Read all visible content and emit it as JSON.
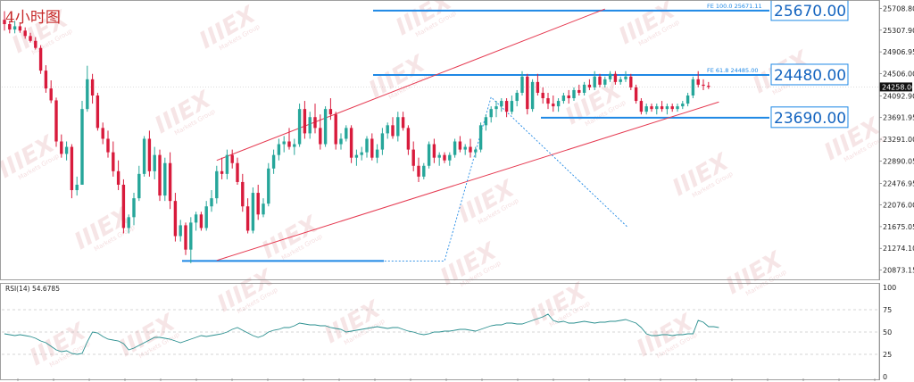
{
  "chart_data": {
    "type": "candlestick",
    "title": "4小时图",
    "price_axis": {
      "ylim": [
        20700,
        25800
      ],
      "ticks": [
        "25708.80",
        "25307.90",
        "24906.95",
        "24506.00",
        "24092.90",
        "23691.95",
        "23291.00",
        "22890.05",
        "22476.95",
        "22076.00",
        "21675.05",
        "21274.10",
        "20873.15"
      ],
      "current_price": "24258.00"
    },
    "candles": [
      {
        "o": 25500,
        "h": 25660,
        "l": 25300,
        "c": 25420
      },
      {
        "o": 25420,
        "h": 25480,
        "l": 25250,
        "c": 25320
      },
      {
        "o": 25320,
        "h": 25480,
        "l": 25250,
        "c": 25380
      },
      {
        "o": 25380,
        "h": 25450,
        "l": 25260,
        "c": 25300
      },
      {
        "o": 25300,
        "h": 25360,
        "l": 25150,
        "c": 25200
      },
      {
        "o": 25200,
        "h": 25260,
        "l": 25080,
        "c": 25110
      },
      {
        "o": 25110,
        "h": 25180,
        "l": 24950,
        "c": 24980
      },
      {
        "o": 24980,
        "h": 25030,
        "l": 24500,
        "c": 24560
      },
      {
        "o": 24560,
        "h": 24660,
        "l": 24150,
        "c": 24230
      },
      {
        "o": 24230,
        "h": 24380,
        "l": 23960,
        "c": 24010
      },
      {
        "o": 24010,
        "h": 24060,
        "l": 23150,
        "c": 23250
      },
      {
        "o": 23250,
        "h": 23380,
        "l": 22950,
        "c": 23020
      },
      {
        "o": 23020,
        "h": 23250,
        "l": 22900,
        "c": 23150
      },
      {
        "o": 23150,
        "h": 23200,
        "l": 22200,
        "c": 22350
      },
      {
        "o": 22350,
        "h": 22600,
        "l": 22250,
        "c": 22450
      },
      {
        "o": 22450,
        "h": 24000,
        "l": 22450,
        "c": 23850
      },
      {
        "o": 23850,
        "h": 24650,
        "l": 23800,
        "c": 24400
      },
      {
        "o": 24400,
        "h": 24500,
        "l": 23950,
        "c": 24100
      },
      {
        "o": 24100,
        "h": 24150,
        "l": 23450,
        "c": 23500
      },
      {
        "o": 23500,
        "h": 23600,
        "l": 23200,
        "c": 23300
      },
      {
        "o": 23300,
        "h": 23450,
        "l": 22950,
        "c": 23050
      },
      {
        "o": 23050,
        "h": 23250,
        "l": 22600,
        "c": 22700
      },
      {
        "o": 22700,
        "h": 22900,
        "l": 22350,
        "c": 22450
      },
      {
        "o": 22450,
        "h": 22550,
        "l": 21550,
        "c": 21650
      },
      {
        "o": 21650,
        "h": 21900,
        "l": 21550,
        "c": 21850
      },
      {
        "o": 21850,
        "h": 22300,
        "l": 21700,
        "c": 22200
      },
      {
        "o": 22200,
        "h": 22800,
        "l": 22150,
        "c": 22650
      },
      {
        "o": 22650,
        "h": 23350,
        "l": 22600,
        "c": 23300
      },
      {
        "o": 23300,
        "h": 23450,
        "l": 22600,
        "c": 22700
      },
      {
        "o": 22700,
        "h": 23150,
        "l": 22550,
        "c": 23000
      },
      {
        "o": 23000,
        "h": 23100,
        "l": 22150,
        "c": 22250
      },
      {
        "o": 22250,
        "h": 22950,
        "l": 22150,
        "c": 22850
      },
      {
        "o": 22850,
        "h": 23050,
        "l": 22000,
        "c": 22150
      },
      {
        "o": 22150,
        "h": 22300,
        "l": 21400,
        "c": 21500
      },
      {
        "o": 21500,
        "h": 21800,
        "l": 21400,
        "c": 21700
      },
      {
        "o": 21700,
        "h": 21750,
        "l": 21150,
        "c": 21250
      },
      {
        "o": 21250,
        "h": 21850,
        "l": 21000,
        "c": 21750
      },
      {
        "o": 21750,
        "h": 21950,
        "l": 21600,
        "c": 21900
      },
      {
        "o": 21900,
        "h": 21950,
        "l": 21600,
        "c": 21650
      },
      {
        "o": 21650,
        "h": 22150,
        "l": 21600,
        "c": 22050
      },
      {
        "o": 22050,
        "h": 22350,
        "l": 21950,
        "c": 22200
      },
      {
        "o": 22200,
        "h": 22800,
        "l": 22100,
        "c": 22700
      },
      {
        "o": 22700,
        "h": 22950,
        "l": 22550,
        "c": 22650
      },
      {
        "o": 22650,
        "h": 23100,
        "l": 22550,
        "c": 23000
      },
      {
        "o": 23000,
        "h": 23100,
        "l": 22750,
        "c": 22850
      },
      {
        "o": 22850,
        "h": 22950,
        "l": 22450,
        "c": 22500
      },
      {
        "o": 22500,
        "h": 22650,
        "l": 21950,
        "c": 22050
      },
      {
        "o": 22050,
        "h": 22200,
        "l": 21550,
        "c": 21600
      },
      {
        "o": 21600,
        "h": 22400,
        "l": 21550,
        "c": 22300
      },
      {
        "o": 22300,
        "h": 22450,
        "l": 21800,
        "c": 21900
      },
      {
        "o": 21900,
        "h": 22200,
        "l": 21850,
        "c": 22100
      },
      {
        "o": 22100,
        "h": 22850,
        "l": 22050,
        "c": 22750
      },
      {
        "o": 22750,
        "h": 23100,
        "l": 22650,
        "c": 23000
      },
      {
        "o": 23000,
        "h": 23300,
        "l": 22900,
        "c": 23200
      },
      {
        "o": 23200,
        "h": 23350,
        "l": 23050,
        "c": 23250
      },
      {
        "o": 23250,
        "h": 23500,
        "l": 23100,
        "c": 23150
      },
      {
        "o": 23150,
        "h": 23300,
        "l": 23000,
        "c": 23200
      },
      {
        "o": 23200,
        "h": 23950,
        "l": 23150,
        "c": 23850
      },
      {
        "o": 23850,
        "h": 24000,
        "l": 23300,
        "c": 23400
      },
      {
        "o": 23400,
        "h": 23800,
        "l": 23300,
        "c": 23700
      },
      {
        "o": 23700,
        "h": 23950,
        "l": 23400,
        "c": 23500
      },
      {
        "o": 23500,
        "h": 23750,
        "l": 23100,
        "c": 23200
      },
      {
        "o": 23200,
        "h": 23900,
        "l": 23150,
        "c": 23850
      },
      {
        "o": 23850,
        "h": 24050,
        "l": 23650,
        "c": 23750
      },
      {
        "o": 23750,
        "h": 23800,
        "l": 23100,
        "c": 23200
      },
      {
        "o": 23200,
        "h": 23400,
        "l": 23100,
        "c": 23300
      },
      {
        "o": 23300,
        "h": 23550,
        "l": 23250,
        "c": 23500
      },
      {
        "o": 23500,
        "h": 23550,
        "l": 22850,
        "c": 22950
      },
      {
        "o": 22950,
        "h": 23100,
        "l": 22800,
        "c": 23000
      },
      {
        "o": 23000,
        "h": 23150,
        "l": 22900,
        "c": 23050
      },
      {
        "o": 23050,
        "h": 23350,
        "l": 22950,
        "c": 23300
      },
      {
        "o": 23300,
        "h": 23400,
        "l": 22900,
        "c": 22950
      },
      {
        "o": 22950,
        "h": 23200,
        "l": 22850,
        "c": 23100
      },
      {
        "o": 23100,
        "h": 23500,
        "l": 23000,
        "c": 23400
      },
      {
        "o": 23400,
        "h": 23600,
        "l": 23300,
        "c": 23550
      },
      {
        "o": 23550,
        "h": 23700,
        "l": 23300,
        "c": 23350
      },
      {
        "o": 23350,
        "h": 23800,
        "l": 23250,
        "c": 23700
      },
      {
        "o": 23700,
        "h": 23800,
        "l": 23450,
        "c": 23500
      },
      {
        "o": 23500,
        "h": 23550,
        "l": 23000,
        "c": 23100
      },
      {
        "o": 23100,
        "h": 23250,
        "l": 22700,
        "c": 22800
      },
      {
        "o": 22800,
        "h": 22950,
        "l": 22500,
        "c": 22600
      },
      {
        "o": 22600,
        "h": 22850,
        "l": 22550,
        "c": 22800
      },
      {
        "o": 22800,
        "h": 23250,
        "l": 22750,
        "c": 23200
      },
      {
        "o": 23200,
        "h": 23300,
        "l": 22850,
        "c": 22950
      },
      {
        "o": 22950,
        "h": 23050,
        "l": 22800,
        "c": 23000
      },
      {
        "o": 23000,
        "h": 23050,
        "l": 22850,
        "c": 22900
      },
      {
        "o": 22900,
        "h": 23050,
        "l": 22800,
        "c": 23000
      },
      {
        "o": 23000,
        "h": 23300,
        "l": 22950,
        "c": 23250
      },
      {
        "o": 23250,
        "h": 23350,
        "l": 23050,
        "c": 23100
      },
      {
        "o": 23100,
        "h": 23200,
        "l": 23000,
        "c": 23150
      },
      {
        "o": 23150,
        "h": 23300,
        "l": 22950,
        "c": 23050
      },
      {
        "o": 23050,
        "h": 23150,
        "l": 22950,
        "c": 23100
      },
      {
        "o": 23100,
        "h": 23600,
        "l": 23050,
        "c": 23550
      },
      {
        "o": 23550,
        "h": 23750,
        "l": 23450,
        "c": 23700
      },
      {
        "o": 23700,
        "h": 23900,
        "l": 23600,
        "c": 23850
      },
      {
        "o": 23850,
        "h": 24000,
        "l": 23700,
        "c": 23900
      },
      {
        "o": 23900,
        "h": 24050,
        "l": 23800,
        "c": 24000
      },
      {
        "o": 24000,
        "h": 24050,
        "l": 23700,
        "c": 23800
      },
      {
        "o": 23800,
        "h": 24100,
        "l": 23750,
        "c": 24000
      },
      {
        "o": 24000,
        "h": 24200,
        "l": 23900,
        "c": 24150
      },
      {
        "o": 24150,
        "h": 24550,
        "l": 24100,
        "c": 24450
      },
      {
        "o": 24450,
        "h": 24500,
        "l": 23750,
        "c": 23850
      },
      {
        "o": 23850,
        "h": 24400,
        "l": 23800,
        "c": 24350
      },
      {
        "o": 24350,
        "h": 24500,
        "l": 24100,
        "c": 24150
      },
      {
        "o": 24150,
        "h": 24250,
        "l": 23950,
        "c": 24050
      },
      {
        "o": 24050,
        "h": 24150,
        "l": 23850,
        "c": 23950
      },
      {
        "o": 23950,
        "h": 24100,
        "l": 23800,
        "c": 23900
      },
      {
        "o": 23900,
        "h": 24050,
        "l": 23800,
        "c": 24000
      },
      {
        "o": 24000,
        "h": 24150,
        "l": 23950,
        "c": 24100
      },
      {
        "o": 24100,
        "h": 24200,
        "l": 23950,
        "c": 24050
      },
      {
        "o": 24050,
        "h": 24250,
        "l": 24000,
        "c": 24200
      },
      {
        "o": 24200,
        "h": 24300,
        "l": 24100,
        "c": 24150
      },
      {
        "o": 24150,
        "h": 24350,
        "l": 24100,
        "c": 24300
      },
      {
        "o": 24300,
        "h": 24400,
        "l": 24200,
        "c": 24250
      },
      {
        "o": 24250,
        "h": 24550,
        "l": 24200,
        "c": 24450
      },
      {
        "o": 24450,
        "h": 24500,
        "l": 24250,
        "c": 24300
      },
      {
        "o": 24300,
        "h": 24450,
        "l": 24250,
        "c": 24400
      },
      {
        "o": 24400,
        "h": 24550,
        "l": 24350,
        "c": 24500
      },
      {
        "o": 24500,
        "h": 24550,
        "l": 24300,
        "c": 24350
      },
      {
        "o": 24350,
        "h": 24450,
        "l": 24300,
        "c": 24400
      },
      {
        "o": 24400,
        "h": 24550,
        "l": 24350,
        "c": 24450
      },
      {
        "o": 24450,
        "h": 24500,
        "l": 24200,
        "c": 24250
      },
      {
        "o": 24250,
        "h": 24300,
        "l": 23950,
        "c": 24000
      },
      {
        "o": 24000,
        "h": 24050,
        "l": 23750,
        "c": 23800
      },
      {
        "o": 23800,
        "h": 23950,
        "l": 23750,
        "c": 23900
      },
      {
        "o": 23900,
        "h": 23950,
        "l": 23800,
        "c": 23850
      },
      {
        "o": 23850,
        "h": 23950,
        "l": 23750,
        "c": 23900
      },
      {
        "o": 23900,
        "h": 24000,
        "l": 23800,
        "c": 23850
      },
      {
        "o": 23850,
        "h": 23950,
        "l": 23750,
        "c": 23900
      },
      {
        "o": 23900,
        "h": 23950,
        "l": 23800,
        "c": 23850
      },
      {
        "o": 23850,
        "h": 23950,
        "l": 23800,
        "c": 23900
      },
      {
        "o": 23900,
        "h": 24000,
        "l": 23850,
        "c": 23950
      },
      {
        "o": 23950,
        "h": 24150,
        "l": 23900,
        "c": 24100
      },
      {
        "o": 24100,
        "h": 24450,
        "l": 24050,
        "c": 24400
      },
      {
        "o": 24400,
        "h": 24550,
        "l": 24250,
        "c": 24300
      },
      {
        "o": 24300,
        "h": 24400,
        "l": 24200,
        "c": 24280
      },
      {
        "o": 24280,
        "h": 24350,
        "l": 24220,
        "c": 24258
      }
    ],
    "levels": [
      {
        "price": 25670,
        "label": "25670.00",
        "fe": "FE 100.0  25671.11"
      },
      {
        "price": 24480,
        "label": "24480.00",
        "fe": "FE 61.8  24485.00"
      },
      {
        "price": 23690,
        "label": "23690.00",
        "fe": ""
      }
    ],
    "swing_low_level": 21040,
    "channel": {
      "upper": {
        "start": [
          41,
          22900
        ],
        "end": [
          116,
          25700
        ]
      },
      "lower": {
        "start": [
          41,
          21050
        ],
        "end": [
          138,
          23980
        ]
      }
    },
    "fib_projection": {
      "points": [
        [
          41,
          21040
        ],
        [
          85,
          21040
        ],
        [
          94,
          24070
        ],
        [
          111,
          22520
        ]
      ]
    },
    "rsi": {
      "label": "RSI(14) 54.6785",
      "ylim": [
        0,
        100
      ],
      "ticks": [
        "100",
        "75",
        "50",
        "25",
        "0"
      ],
      "levels": [
        75,
        50,
        25
      ],
      "values": [
        48,
        47,
        46,
        47,
        46,
        45,
        43,
        40,
        38,
        34,
        30,
        28,
        29,
        26,
        25,
        26,
        39,
        50,
        49,
        45,
        42,
        41,
        40,
        37,
        30,
        32,
        35,
        38,
        41,
        44,
        44,
        43,
        42,
        40,
        38,
        40,
        42,
        44,
        46,
        45,
        46,
        47,
        48,
        50,
        53,
        55,
        52,
        49,
        46,
        44,
        46,
        50,
        52,
        53,
        55,
        55,
        57,
        60,
        59,
        58,
        58,
        57,
        57,
        55,
        54,
        53,
        50,
        51,
        52,
        53,
        54,
        55,
        56,
        55,
        54,
        55,
        55,
        53,
        51,
        50,
        48,
        47,
        48,
        50,
        50,
        51,
        51,
        52,
        53,
        53,
        52,
        51,
        53,
        55,
        57,
        58,
        58,
        60,
        60,
        59,
        59,
        61,
        63,
        65,
        67,
        70,
        63,
        61,
        62,
        60,
        60,
        61,
        62,
        61,
        60,
        61,
        61,
        62,
        62,
        63,
        64,
        62,
        60,
        55,
        48,
        46,
        46,
        47,
        47,
        46,
        47,
        47,
        48,
        48,
        63,
        61,
        56,
        56,
        55
      ]
    }
  }
}
